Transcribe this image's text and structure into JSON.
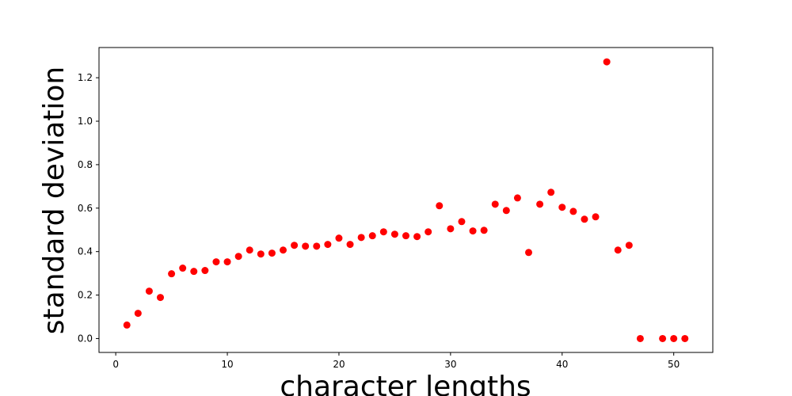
{
  "chart_data": {
    "type": "scatter",
    "x_label": "character lengths",
    "y_label": "standard deviation",
    "series": [
      {
        "color": "#ff0000",
        "x": [
          1,
          2,
          3,
          4,
          5,
          6,
          7,
          8,
          9,
          10,
          11,
          12,
          13,
          14,
          15,
          16,
          17,
          18,
          19,
          20,
          21,
          22,
          23,
          24,
          25,
          26,
          27,
          28,
          29,
          30,
          31,
          32,
          33,
          34,
          35,
          36,
          37,
          38,
          39,
          40,
          41,
          42,
          43,
          44,
          45,
          46,
          47,
          49,
          50,
          51
        ],
        "values": [
          0.062,
          0.116,
          0.218,
          0.189,
          0.298,
          0.324,
          0.309,
          0.313,
          0.353,
          0.353,
          0.378,
          0.407,
          0.389,
          0.393,
          0.407,
          0.429,
          0.425,
          0.425,
          0.433,
          0.462,
          0.433,
          0.465,
          0.473,
          0.491,
          0.48,
          0.473,
          0.469,
          0.491,
          0.611,
          0.505,
          0.538,
          0.495,
          0.498,
          0.618,
          0.589,
          0.647,
          0.396,
          0.618,
          0.673,
          0.604,
          0.585,
          0.549,
          0.56,
          1.273,
          0.407,
          0.429,
          0,
          0,
          0,
          0
        ]
      }
    ],
    "xlim": [
      -1.5,
      53.5
    ],
    "xticks": [
      0,
      10,
      20,
      30,
      40,
      50
    ],
    "ylim": [
      -0.064,
      1.339
    ],
    "yticks": [
      {
        "value": 0,
        "label": "0.0"
      },
      0.2,
      0.4,
      0.6,
      0.8,
      {
        "value": 1,
        "label": "1.0"
      },
      1.2
    ]
  }
}
